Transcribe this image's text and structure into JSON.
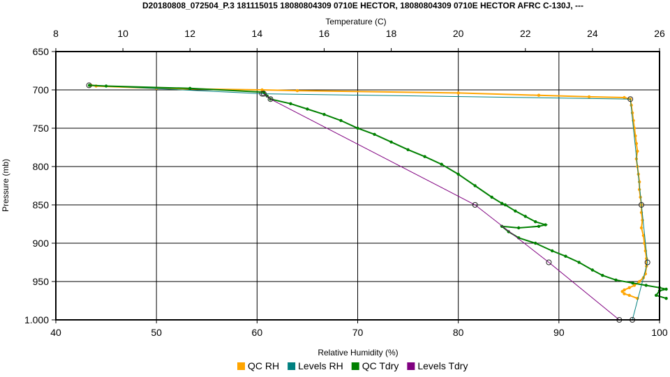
{
  "chart_data": {
    "type": "line",
    "title": "D20180808_072504_P.3 181115015 18080804309 0710E HECTOR, 18080804309 0710E HECTOR AFRC C-130J, ---",
    "ylabel": "Pressure (mb)",
    "x_bottom_label": "Relative Humidity (%)",
    "x_top_label": "Temperature (C)",
    "ylim": [
      650,
      1000
    ],
    "y_inverted": true,
    "y_ticks": [
      "650",
      "700",
      "750",
      "800",
      "850",
      "900",
      "950",
      "1.000"
    ],
    "x_bottom_lim": [
      40,
      100
    ],
    "x_bottom_ticks": [
      "40",
      "50",
      "60",
      "70",
      "80",
      "90",
      "100"
    ],
    "x_top_lim": [
      8,
      26
    ],
    "x_top_ticks": [
      "8",
      "10",
      "12",
      "14",
      "16",
      "18",
      "20",
      "22",
      "24",
      "26"
    ],
    "grid": true,
    "legend_position": "bottom",
    "series": [
      {
        "name": "QC RH",
        "axis": "bottom",
        "color": "#FFA500",
        "marker": "dot",
        "points": [
          [
            43.5,
            694
          ],
          [
            44,
            695
          ],
          [
            50,
            698
          ],
          [
            60.5,
            700
          ],
          [
            64,
            701
          ],
          [
            80,
            704
          ],
          [
            88,
            707
          ],
          [
            93,
            709
          ],
          [
            96.5,
            710
          ],
          [
            97.1,
            712
          ],
          [
            97.2,
            720
          ],
          [
            97.3,
            730
          ],
          [
            97.4,
            740
          ],
          [
            97.5,
            750
          ],
          [
            97.6,
            760
          ],
          [
            97.7,
            770
          ],
          [
            97.8,
            780
          ],
          [
            97.7,
            790
          ],
          [
            97.8,
            800
          ],
          [
            97.9,
            810
          ],
          [
            98.0,
            820
          ],
          [
            98.0,
            830
          ],
          [
            98.1,
            840
          ],
          [
            98.2,
            850
          ],
          [
            98.2,
            860
          ],
          [
            98.3,
            870
          ],
          [
            98.2,
            880
          ],
          [
            98.4,
            890
          ],
          [
            98.5,
            900
          ],
          [
            98.6,
            910
          ],
          [
            98.7,
            920
          ],
          [
            98.7,
            930
          ],
          [
            98.6,
            940
          ],
          [
            98.4,
            945
          ],
          [
            98.0,
            950
          ],
          [
            97.5,
            955
          ],
          [
            97.0,
            958
          ],
          [
            96.5,
            961
          ],
          [
            96.3,
            963
          ],
          [
            96.5,
            966
          ],
          [
            97.0,
            968
          ],
          [
            97.8,
            972
          ]
        ]
      },
      {
        "name": "Levels RH",
        "axis": "bottom",
        "color": "#008080",
        "marker": "circle",
        "points": [
          [
            43.3,
            694
          ],
          [
            60.5,
            705
          ],
          [
            97.1,
            712
          ],
          [
            98.2,
            850
          ],
          [
            98.8,
            925
          ],
          [
            97.3,
            1000
          ]
        ]
      },
      {
        "name": "QC Tdry",
        "axis": "top",
        "color": "#008000",
        "marker": "dot",
        "points": [
          [
            9.0,
            694
          ],
          [
            9.5,
            695
          ],
          [
            12,
            698
          ],
          [
            14.2,
            703
          ],
          [
            14.3,
            708
          ],
          [
            14.4,
            712
          ],
          [
            15,
            718
          ],
          [
            15.5,
            725
          ],
          [
            16,
            732
          ],
          [
            16.5,
            740
          ],
          [
            17,
            750
          ],
          [
            17.5,
            758
          ],
          [
            18,
            768
          ],
          [
            18.5,
            778
          ],
          [
            19,
            787
          ],
          [
            19.5,
            797
          ],
          [
            20,
            810
          ],
          [
            20.5,
            825
          ],
          [
            21,
            840
          ],
          [
            21.3,
            848
          ],
          [
            21.4,
            850
          ],
          [
            21.7,
            858
          ],
          [
            22.0,
            865
          ],
          [
            22.3,
            872
          ],
          [
            22.6,
            876
          ],
          [
            22.4,
            878
          ],
          [
            21.8,
            880
          ],
          [
            21.3,
            878
          ],
          [
            21.5,
            885
          ],
          [
            21.8,
            893
          ],
          [
            22.3,
            900
          ],
          [
            22.8,
            910
          ],
          [
            23.2,
            917
          ],
          [
            23.6,
            925
          ],
          [
            24.0,
            935
          ],
          [
            24.3,
            942
          ],
          [
            24.7,
            948
          ],
          [
            25.2,
            952
          ],
          [
            25.6,
            955
          ],
          [
            26.0,
            958
          ],
          [
            26.2,
            960
          ],
          [
            26.0,
            962
          ],
          [
            25.9,
            968
          ],
          [
            26.2,
            972
          ]
        ]
      },
      {
        "name": "Levels Tdry",
        "axis": "top",
        "color": "#800080",
        "marker": "circle",
        "points": [
          [
            14.2,
            705
          ],
          [
            14.4,
            712
          ],
          [
            20.5,
            850
          ],
          [
            22.7,
            925
          ],
          [
            24.8,
            1000
          ]
        ]
      }
    ]
  },
  "legend": [
    {
      "label": "QC RH",
      "color": "#FFA500"
    },
    {
      "label": "Levels RH",
      "color": "#008080"
    },
    {
      "label": "QC Tdry",
      "color": "#008000"
    },
    {
      "label": "Levels Tdry",
      "color": "#800080"
    }
  ]
}
